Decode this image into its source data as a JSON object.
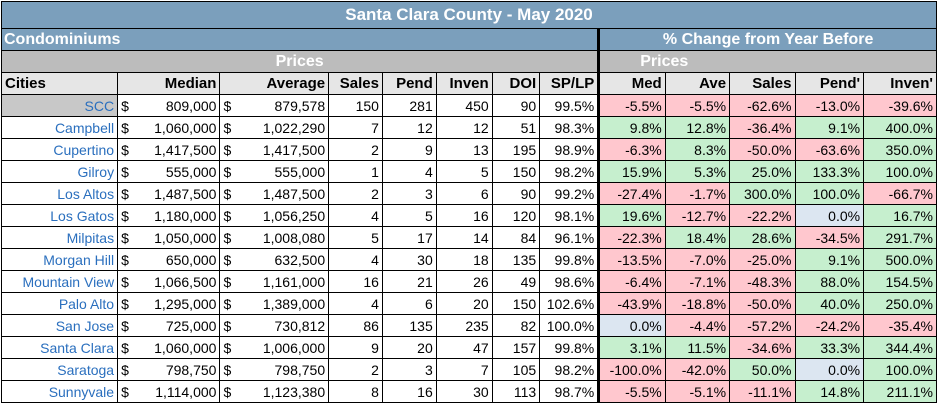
{
  "title": "Santa Clara County - May 2020",
  "section_left": "Condominiums",
  "section_right": "% Change from Year Before",
  "prices_left": "Prices",
  "prices_right": "Prices",
  "headers": [
    "Cities",
    "Median",
    "Average",
    "Sales",
    "Pend",
    "Inven",
    "DOI",
    "SP/LP",
    "Med",
    "Ave",
    "Sales",
    "Pend'",
    "Inven'"
  ],
  "currency_symbol": "$",
  "colors": {
    "positive": "#c6efce",
    "negative": "#ffc7ce",
    "neutral": "#dce6f1"
  },
  "rows": [
    {
      "city": "SCC",
      "median": "809,000",
      "average": "879,578",
      "sales": "150",
      "pend": "281",
      "inven": "450",
      "doi": "90",
      "splp": "99.5%",
      "med": "-5.5%",
      "ave": "-5.5%",
      "sales_pct": "-62.6%",
      "pend_pct": "-13.0%",
      "inven_pct": "-39.6%"
    },
    {
      "city": "Campbell",
      "median": "1,060,000",
      "average": "1,022,290",
      "sales": "7",
      "pend": "12",
      "inven": "12",
      "doi": "51",
      "splp": "98.3%",
      "med": "9.8%",
      "ave": "12.8%",
      "sales_pct": "-36.4%",
      "pend_pct": "9.1%",
      "inven_pct": "400.0%"
    },
    {
      "city": "Cupertino",
      "median": "1,417,500",
      "average": "1,417,500",
      "sales": "2",
      "pend": "9",
      "inven": "13",
      "doi": "195",
      "splp": "98.9%",
      "med": "-6.3%",
      "ave": "8.3%",
      "sales_pct": "-50.0%",
      "pend_pct": "-63.6%",
      "inven_pct": "350.0%"
    },
    {
      "city": "Gilroy",
      "median": "555,000",
      "average": "555,000",
      "sales": "1",
      "pend": "4",
      "inven": "5",
      "doi": "150",
      "splp": "98.2%",
      "med": "15.9%",
      "ave": "5.3%",
      "sales_pct": "25.0%",
      "pend_pct": "133.3%",
      "inven_pct": "100.0%"
    },
    {
      "city": "Los Altos",
      "median": "1,487,500",
      "average": "1,487,500",
      "sales": "2",
      "pend": "3",
      "inven": "6",
      "doi": "90",
      "splp": "99.2%",
      "med": "-27.4%",
      "ave": "-1.7%",
      "sales_pct": "300.0%",
      "pend_pct": "100.0%",
      "inven_pct": "-66.7%"
    },
    {
      "city": "Los Gatos",
      "median": "1,180,000",
      "average": "1,056,250",
      "sales": "4",
      "pend": "5",
      "inven": "16",
      "doi": "120",
      "splp": "98.1%",
      "med": "19.6%",
      "ave": "-12.7%",
      "sales_pct": "-22.2%",
      "pend_pct": "0.0%",
      "inven_pct": "16.7%"
    },
    {
      "city": "Milpitas",
      "median": "1,050,000",
      "average": "1,008,080",
      "sales": "5",
      "pend": "17",
      "inven": "14",
      "doi": "84",
      "splp": "96.1%",
      "med": "-22.3%",
      "ave": "18.4%",
      "sales_pct": "28.6%",
      "pend_pct": "-34.5%",
      "inven_pct": "291.7%"
    },
    {
      "city": "Morgan Hill",
      "median": "650,000",
      "average": "632,500",
      "sales": "4",
      "pend": "30",
      "inven": "18",
      "doi": "135",
      "splp": "99.8%",
      "med": "-13.5%",
      "ave": "-7.0%",
      "sales_pct": "-25.0%",
      "pend_pct": "9.1%",
      "inven_pct": "500.0%"
    },
    {
      "city": "Mountain View",
      "median": "1,066,500",
      "average": "1,161,000",
      "sales": "16",
      "pend": "21",
      "inven": "26",
      "doi": "49",
      "splp": "98.6%",
      "med": "-6.4%",
      "ave": "-7.1%",
      "sales_pct": "-48.3%",
      "pend_pct": "88.0%",
      "inven_pct": "154.5%"
    },
    {
      "city": "Palo Alto",
      "median": "1,295,000",
      "average": "1,389,000",
      "sales": "4",
      "pend": "6",
      "inven": "20",
      "doi": "150",
      "splp": "102.6%",
      "med": "-43.9%",
      "ave": "-18.8%",
      "sales_pct": "-50.0%",
      "pend_pct": "40.0%",
      "inven_pct": "250.0%"
    },
    {
      "city": "San Jose",
      "median": "725,000",
      "average": "730,812",
      "sales": "86",
      "pend": "135",
      "inven": "235",
      "doi": "82",
      "splp": "100.0%",
      "med": "0.0%",
      "ave": "-4.4%",
      "sales_pct": "-57.2%",
      "pend_pct": "-24.2%",
      "inven_pct": "-35.4%"
    },
    {
      "city": "Santa Clara",
      "median": "1,060,000",
      "average": "1,006,000",
      "sales": "9",
      "pend": "20",
      "inven": "47",
      "doi": "157",
      "splp": "99.8%",
      "med": "3.1%",
      "ave": "11.5%",
      "sales_pct": "-34.6%",
      "pend_pct": "33.3%",
      "inven_pct": "344.4%"
    },
    {
      "city": "Saratoga",
      "median": "798,750",
      "average": "798,750",
      "sales": "2",
      "pend": "3",
      "inven": "7",
      "doi": "105",
      "splp": "98.2%",
      "med": "-100.0%",
      "ave": "-42.0%",
      "sales_pct": "50.0%",
      "pend_pct": "0.0%",
      "inven_pct": "100.0%"
    },
    {
      "city": "Sunnyvale",
      "median": "1,114,000",
      "average": "1,123,380",
      "sales": "8",
      "pend": "16",
      "inven": "30",
      "doi": "113",
      "splp": "98.7%",
      "med": "-5.5%",
      "ave": "-5.1%",
      "sales_pct": "-11.1%",
      "pend_pct": "14.8%",
      "inven_pct": "211.1%"
    }
  ]
}
